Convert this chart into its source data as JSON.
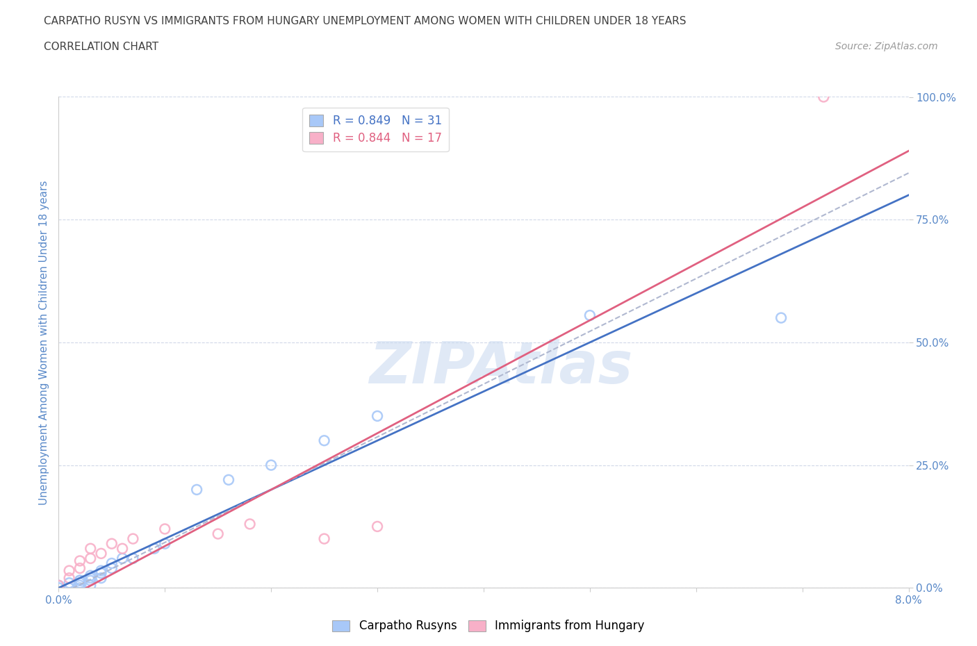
{
  "title_line1": "CARPATHO RUSYN VS IMMIGRANTS FROM HUNGARY UNEMPLOYMENT AMONG WOMEN WITH CHILDREN UNDER 18 YEARS",
  "title_line2": "CORRELATION CHART",
  "source_text": "Source: ZipAtlas.com",
  "ylabel": "Unemployment Among Women with Children Under 18 years",
  "xlim": [
    0,
    0.08
  ],
  "ylim": [
    0,
    1.0
  ],
  "xticks": [
    0.0,
    0.01,
    0.02,
    0.03,
    0.04,
    0.05,
    0.06,
    0.07,
    0.08
  ],
  "xticklabels": [
    "0.0%",
    "",
    "",
    "",
    "",
    "",
    "",
    "",
    "8.0%"
  ],
  "yticks": [
    0.0,
    0.25,
    0.5,
    0.75,
    1.0
  ],
  "yticklabels": [
    "0.0%",
    "25.0%",
    "50.0%",
    "75.0%",
    "100.0%"
  ],
  "legend_r_blue": "R = 0.849",
  "legend_n_blue": "N = 31",
  "legend_r_pink": "R = 0.844",
  "legend_n_pink": "N = 17",
  "blue_color": "#a8c8f8",
  "pink_color": "#f8b0c8",
  "blue_line_color": "#4472c4",
  "pink_line_color": "#e06080",
  "gray_dash_color": "#b0b8d0",
  "watermark_text": "ZIPAtlas",
  "background_color": "#ffffff",
  "grid_color": "#d0d8e8",
  "title_color": "#404040",
  "axis_label_color": "#5888c8",
  "blue_x": [
    0.0,
    0.0,
    0.001,
    0.001,
    0.001,
    0.001,
    0.002,
    0.002,
    0.002,
    0.002,
    0.002,
    0.003,
    0.003,
    0.003,
    0.003,
    0.004,
    0.004,
    0.004,
    0.005,
    0.005,
    0.006,
    0.007,
    0.009,
    0.01,
    0.013,
    0.016,
    0.02,
    0.025,
    0.03,
    0.05,
    0.068
  ],
  "blue_y": [
    0.0,
    0.005,
    0.0,
    0.0,
    0.01,
    0.0,
    0.015,
    0.015,
    0.01,
    0.005,
    0.0,
    0.025,
    0.02,
    0.015,
    0.005,
    0.035,
    0.03,
    0.02,
    0.05,
    0.04,
    0.06,
    0.06,
    0.08,
    0.09,
    0.2,
    0.22,
    0.25,
    0.3,
    0.35,
    0.555,
    0.55
  ],
  "pink_x": [
    0.0,
    0.001,
    0.001,
    0.002,
    0.002,
    0.003,
    0.003,
    0.004,
    0.005,
    0.006,
    0.007,
    0.01,
    0.015,
    0.018,
    0.025,
    0.03,
    0.072
  ],
  "pink_y": [
    0.005,
    0.02,
    0.035,
    0.04,
    0.055,
    0.06,
    0.08,
    0.07,
    0.09,
    0.08,
    0.1,
    0.12,
    0.11,
    0.13,
    0.1,
    0.125,
    1.0
  ],
  "blue_line_x0": 0.0,
  "blue_line_y0": 0.0,
  "blue_line_x1": 0.08,
  "blue_line_y1": 0.8,
  "pink_line_x0": 0.0,
  "pink_line_y0": 0.0,
  "pink_line_x1": 0.08,
  "pink_line_y1": 0.85
}
